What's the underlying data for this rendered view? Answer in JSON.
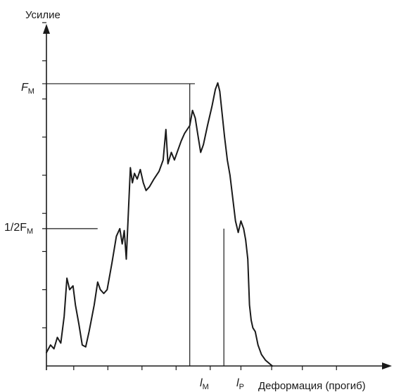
{
  "chart_data": {
    "type": "line",
    "title": "",
    "ylabel": "Усилие",
    "xlabel": "Деформация (прогиб)",
    "xlim": [
      0,
      10
    ],
    "ylim": [
      0,
      10
    ],
    "x_ticks": [
      0.8,
      1.8,
      2.8,
      3.8,
      4.8,
      5.7,
      6.6,
      7.5,
      8.5
    ],
    "y_ticks": [
      1.0,
      2.0,
      3.0,
      4.0,
      5.0,
      6.0,
      7.0,
      8.0,
      9.0
    ],
    "ref_y": [
      {
        "label_main": "F",
        "label_sub": "M",
        "y": 7.4
      },
      {
        "label_main": "1/2F",
        "label_sub": "M",
        "y": 3.6
      }
    ],
    "ref_x": [
      {
        "label_main": "l",
        "label_sub": "M",
        "x": 4.2
      },
      {
        "label_main": "l",
        "label_sub": "P",
        "x": 5.2
      }
    ],
    "series": [
      {
        "points": [
          [
            0.0,
            0.35
          ],
          [
            0.12,
            0.55
          ],
          [
            0.22,
            0.45
          ],
          [
            0.32,
            0.75
          ],
          [
            0.42,
            0.6
          ],
          [
            0.52,
            1.3
          ],
          [
            0.6,
            2.3
          ],
          [
            0.68,
            2.0
          ],
          [
            0.78,
            2.1
          ],
          [
            0.85,
            1.6
          ],
          [
            0.95,
            1.1
          ],
          [
            1.05,
            0.55
          ],
          [
            1.15,
            0.5
          ],
          [
            1.25,
            0.9
          ],
          [
            1.4,
            1.6
          ],
          [
            1.5,
            2.2
          ],
          [
            1.58,
            2.0
          ],
          [
            1.68,
            1.9
          ],
          [
            1.78,
            2.0
          ],
          [
            1.92,
            2.7
          ],
          [
            2.05,
            3.4
          ],
          [
            2.15,
            3.6
          ],
          [
            2.22,
            3.2
          ],
          [
            2.28,
            3.55
          ],
          [
            2.34,
            2.8
          ],
          [
            2.4,
            4.0
          ],
          [
            2.46,
            5.2
          ],
          [
            2.52,
            4.8
          ],
          [
            2.58,
            5.05
          ],
          [
            2.66,
            4.9
          ],
          [
            2.75,
            5.15
          ],
          [
            2.84,
            4.8
          ],
          [
            2.92,
            4.6
          ],
          [
            3.02,
            4.7
          ],
          [
            3.15,
            4.9
          ],
          [
            3.3,
            5.1
          ],
          [
            3.42,
            5.4
          ],
          [
            3.5,
            6.2
          ],
          [
            3.56,
            5.3
          ],
          [
            3.66,
            5.6
          ],
          [
            3.75,
            5.4
          ],
          [
            3.85,
            5.65
          ],
          [
            3.95,
            5.9
          ],
          [
            4.05,
            6.1
          ],
          [
            4.2,
            6.3
          ],
          [
            4.28,
            6.7
          ],
          [
            4.36,
            6.5
          ],
          [
            4.44,
            6.05
          ],
          [
            4.52,
            5.6
          ],
          [
            4.6,
            5.8
          ],
          [
            4.72,
            6.3
          ],
          [
            4.85,
            6.8
          ],
          [
            4.95,
            7.25
          ],
          [
            5.02,
            7.42
          ],
          [
            5.08,
            7.2
          ],
          [
            5.15,
            6.6
          ],
          [
            5.22,
            6.0
          ],
          [
            5.3,
            5.4
          ],
          [
            5.38,
            5.0
          ],
          [
            5.46,
            4.4
          ],
          [
            5.54,
            3.8
          ],
          [
            5.62,
            3.5
          ],
          [
            5.7,
            3.8
          ],
          [
            5.78,
            3.6
          ],
          [
            5.84,
            3.3
          ],
          [
            5.9,
            2.8
          ],
          [
            5.95,
            1.6
          ],
          [
            6.0,
            1.2
          ],
          [
            6.05,
            1.0
          ],
          [
            6.12,
            0.9
          ],
          [
            6.2,
            0.55
          ],
          [
            6.3,
            0.3
          ],
          [
            6.42,
            0.15
          ],
          [
            6.55,
            0.05
          ],
          [
            6.62,
            0.0
          ]
        ]
      }
    ]
  }
}
